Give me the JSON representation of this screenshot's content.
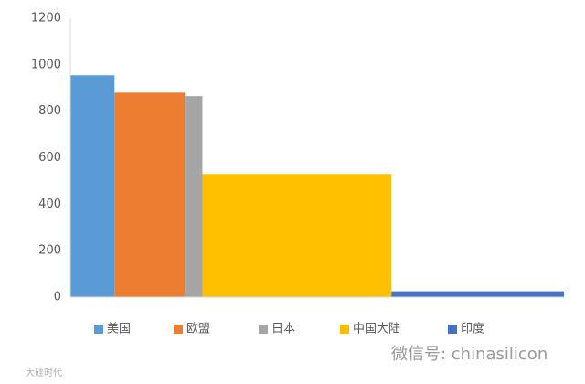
{
  "chart_data": {
    "type": "bar",
    "categories": [
      "美国",
      "欧盟",
      "日本",
      "中国大陆",
      "印度"
    ],
    "values": [
      955,
      880,
      865,
      530,
      25
    ],
    "widths": [
      320,
      510,
      127,
      1370,
      1250
    ],
    "colors": [
      "#5b9bd5",
      "#ed7d31",
      "#a5a5a5",
      "#ffc000",
      "#4472c4"
    ],
    "ylim": [
      0,
      1200
    ],
    "yticks": [
      0,
      200,
      400,
      600,
      800,
      1000,
      1200
    ],
    "grid": false,
    "legend": "bottom"
  },
  "watermark": "微信号: chinasilicon",
  "corner_mark": "大硅时代"
}
